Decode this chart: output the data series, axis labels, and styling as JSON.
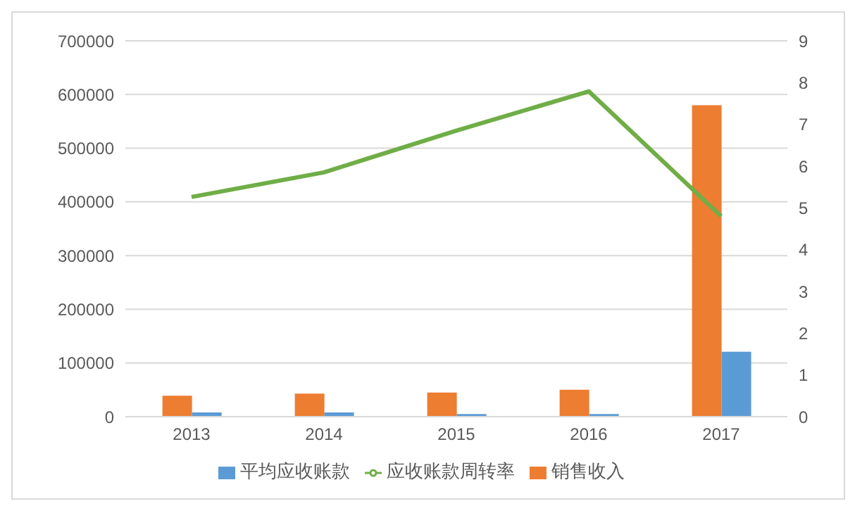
{
  "chart_data": {
    "type": "bar",
    "categories": [
      "2013",
      "2014",
      "2015",
      "2016",
      "2017"
    ],
    "series": [
      {
        "name": "销售收入",
        "color": "#ed7d31",
        "values": [
          39000,
          43000,
          45000,
          50000,
          580000
        ]
      },
      {
        "name": "平均应收账款",
        "color": "#5b9bd5",
        "values": [
          8000,
          8000,
          5000,
          5000,
          121000
        ]
      },
      {
        "name": "应收账款周转率",
        "type": "line",
        "axis": "y2",
        "color": "#70ad47",
        "values": [
          5.26,
          5.85,
          6.85,
          7.79,
          4.8
        ]
      }
    ],
    "ylim": [
      0,
      700000
    ],
    "yticks": [
      0,
      100000,
      200000,
      300000,
      400000,
      500000,
      600000,
      700000
    ],
    "y2lim": [
      0,
      9
    ],
    "y2ticks": [
      0,
      1,
      2,
      3,
      4,
      5,
      6,
      7,
      8,
      9
    ],
    "grid": "y",
    "legend": "bottom",
    "marker": "none"
  }
}
